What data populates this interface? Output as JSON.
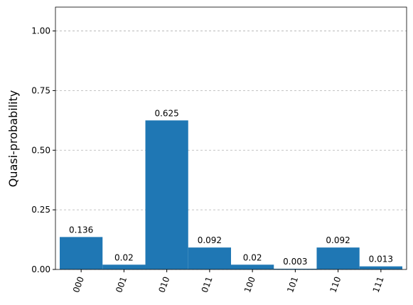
{
  "chart_data": {
    "type": "bar",
    "ylabel": "Quasi-probability",
    "categories": [
      "000",
      "001",
      "010",
      "011",
      "100",
      "101",
      "110",
      "111"
    ],
    "values": [
      0.136,
      0.02,
      0.625,
      0.092,
      0.02,
      0.003,
      0.092,
      0.013
    ],
    "color": "#1f77b4",
    "ylim": [
      0,
      1.1
    ],
    "yticks": [
      {
        "value": 0,
        "label": "0.00"
      },
      {
        "value": 0.25,
        "label": "0.25"
      },
      {
        "value": 0.5,
        "label": "0.50"
      },
      {
        "value": 0.75,
        "label": "0.75"
      },
      {
        "value": 1,
        "label": "1.00"
      }
    ],
    "grid": true
  }
}
